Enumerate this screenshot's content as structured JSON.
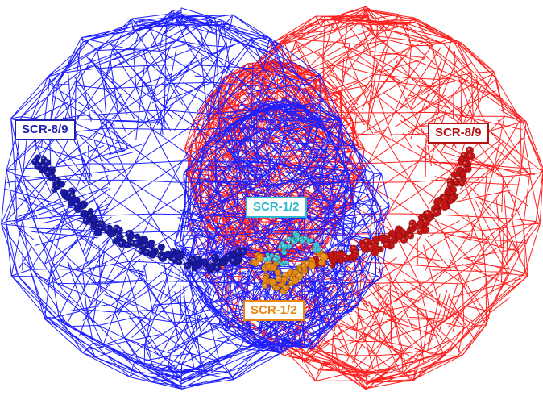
{
  "labels": {
    "blue": "SCR-8/9",
    "red": "SCR-8/9",
    "cyan": "SCR-1/2",
    "orange": "SCR-1/2"
  },
  "colors": {
    "blue_mesh": "#1f1fff",
    "red_mesh": "#ff2020",
    "blue_spheres": "#1a1aa6",
    "red_spheres": "#c41414",
    "cyan_spheres": "#3fc6d6",
    "orange_spheres": "#e58a12",
    "blue_label_text": "#1f1fb0",
    "red_label_text": "#b51010",
    "cyan_label_text": "#2fb8d0",
    "orange_label_text": "#e8860f"
  }
}
